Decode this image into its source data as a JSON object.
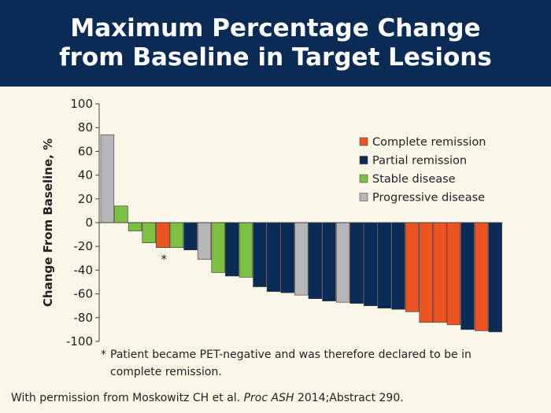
{
  "header": {
    "title_line1": "Maximum Percentage Change",
    "title_line2": "from Baseline in Target Lesions"
  },
  "chart_data": {
    "type": "bar",
    "ylabel": "Change From Baseline, %",
    "ylim": [
      -100,
      100
    ],
    "yticks": [
      100,
      80,
      60,
      40,
      20,
      0,
      -20,
      -40,
      -60,
      -80,
      -100
    ],
    "legend_position": "top-right",
    "legend": [
      {
        "key": "CR",
        "label": "Complete remission",
        "color": "#ee5322"
      },
      {
        "key": "PR",
        "label": "Partial remission",
        "color": "#0b2b57"
      },
      {
        "key": "SD",
        "label": "Stable disease",
        "color": "#7cc142"
      },
      {
        "key": "PD",
        "label": "Progressive disease",
        "color": "#b7b7b9"
      }
    ],
    "bars": [
      {
        "value": 74,
        "category": "PD"
      },
      {
        "value": 14,
        "category": "SD"
      },
      {
        "value": -7,
        "category": "SD"
      },
      {
        "value": -17,
        "category": "SD"
      },
      {
        "value": -21,
        "category": "CR",
        "annotation": "*"
      },
      {
        "value": -21,
        "category": "SD"
      },
      {
        "value": -23,
        "category": "PR"
      },
      {
        "value": -31,
        "category": "PD"
      },
      {
        "value": -42,
        "category": "SD"
      },
      {
        "value": -45,
        "category": "PR"
      },
      {
        "value": -46,
        "category": "SD"
      },
      {
        "value": -54,
        "category": "PR"
      },
      {
        "value": -58,
        "category": "PR"
      },
      {
        "value": -59,
        "category": "PR"
      },
      {
        "value": -61,
        "category": "PD"
      },
      {
        "value": -64,
        "category": "PR"
      },
      {
        "value": -66,
        "category": "PR"
      },
      {
        "value": -67,
        "category": "PD"
      },
      {
        "value": -68,
        "category": "PR"
      },
      {
        "value": -70,
        "category": "PR"
      },
      {
        "value": -72,
        "category": "PR"
      },
      {
        "value": -73,
        "category": "PR"
      },
      {
        "value": -75,
        "category": "CR"
      },
      {
        "value": -84,
        "category": "CR"
      },
      {
        "value": -84,
        "category": "CR"
      },
      {
        "value": -86,
        "category": "CR"
      },
      {
        "value": -90,
        "category": "PR"
      },
      {
        "value": -91,
        "category": "CR"
      },
      {
        "value": -92,
        "category": "PR"
      }
    ]
  },
  "footnote": {
    "marker": "*",
    "text": "Patient became PET-negative and was therefore declared to be in complete remission."
  },
  "credit": {
    "prefix": "With permission from Moskowitz CH et al. ",
    "journal": "Proc ASH",
    "suffix": " 2014;Abstract 290."
  }
}
